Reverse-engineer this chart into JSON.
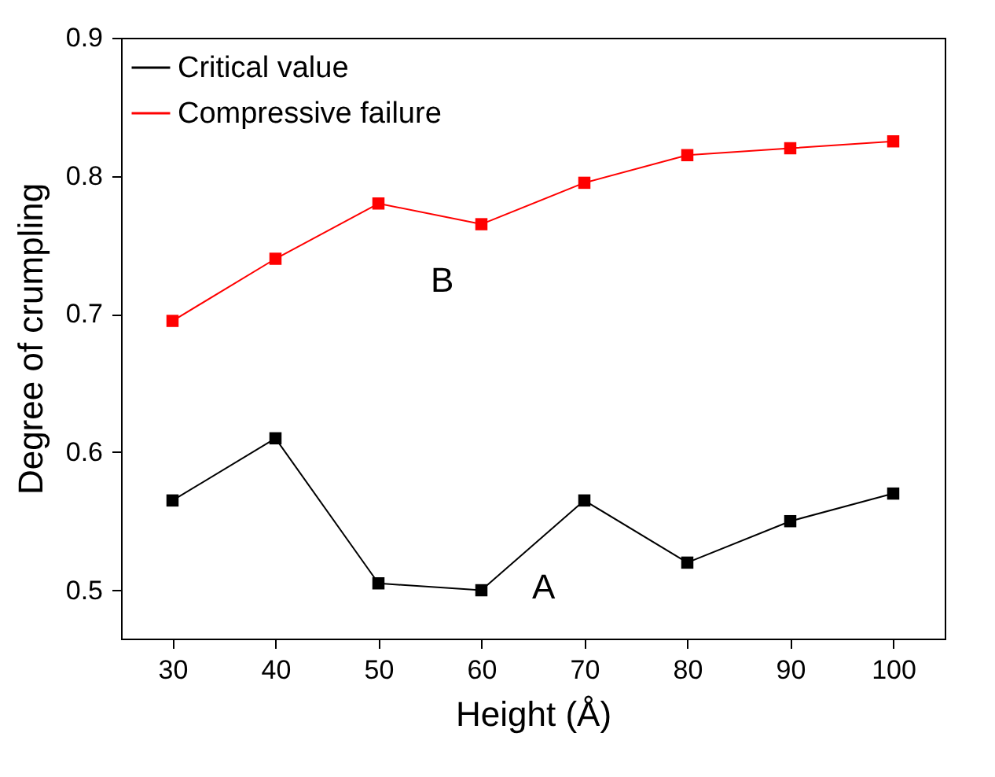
{
  "chart_data": {
    "type": "line",
    "xlabel": "Height (Å)",
    "ylabel": "Degree of crumpling",
    "x": [
      30,
      40,
      50,
      60,
      70,
      80,
      90,
      100
    ],
    "series": [
      {
        "name": "Critical value",
        "color": "#000000",
        "values": [
          0.565,
          0.61,
          0.505,
          0.5,
          0.565,
          0.52,
          0.55,
          0.57
        ]
      },
      {
        "name": "Compressive failure",
        "color": "#ff0000",
        "values": [
          0.695,
          0.74,
          0.78,
          0.765,
          0.795,
          0.815,
          0.82,
          0.825
        ]
      }
    ],
    "xlim": [
      25,
      105
    ],
    "xticks": [
      30,
      40,
      50,
      60,
      70,
      80,
      90,
      100
    ],
    "ylim": [
      0.465,
      0.9
    ],
    "yticks": [
      0.5,
      0.6,
      0.7,
      0.8,
      0.9
    ],
    "annotations": [
      "A",
      "B"
    ],
    "legend": "top left",
    "marker": "square",
    "line_style": "solid",
    "grid": false
  }
}
